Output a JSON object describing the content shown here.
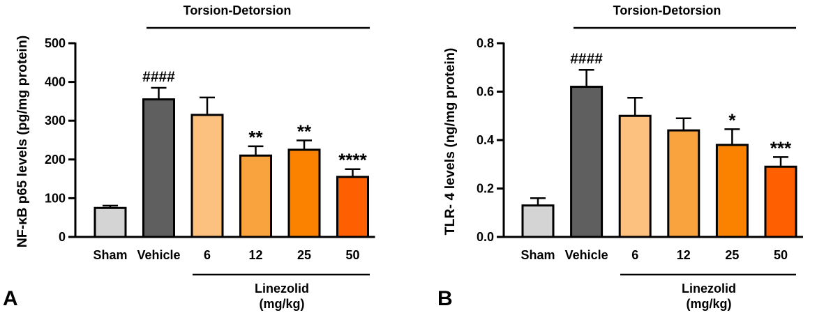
{
  "chart_data": [
    {
      "type": "bar",
      "panel_label": "A",
      "title": "",
      "bracket_top_label": "Torsion-Detorsion",
      "bracket_bottom_label_line1": "Linezolid",
      "bracket_bottom_label_line2": "(mg/kg)",
      "xlabel": "",
      "ylabel": "NF-κB p65 levels (pg/mg protein)",
      "ylim": [
        0,
        500
      ],
      "yticks": [
        0,
        100,
        200,
        300,
        400,
        500
      ],
      "ytick_labels": [
        "0",
        "100",
        "200",
        "300",
        "400",
        "500"
      ],
      "categories": [
        "Sham",
        "Vehicle",
        "6",
        "12",
        "25",
        "50"
      ],
      "values": [
        75,
        355,
        315,
        210,
        225,
        155
      ],
      "errors": [
        6,
        30,
        45,
        24,
        24,
        20
      ],
      "annotations": [
        "",
        "####",
        "",
        "**",
        "**",
        "****"
      ],
      "colors": [
        "#d4d4d4",
        "#5f5f5f",
        "#fcc17e",
        "#f9a33e",
        "#fa8200",
        "#fe5f00"
      ]
    },
    {
      "type": "bar",
      "panel_label": "B",
      "title": "",
      "bracket_top_label": "Torsion-Detorsion",
      "bracket_bottom_label_line1": "Linezolid",
      "bracket_bottom_label_line2": "(mg/kg)",
      "xlabel": "",
      "ylabel": "TLR- 4 levels (ng/mg protein)",
      "ylim": [
        0,
        0.8
      ],
      "yticks": [
        0,
        0.2,
        0.4,
        0.6,
        0.8
      ],
      "ytick_labels": [
        "0.0",
        "0.2",
        "0.4",
        "0.6",
        "0.8"
      ],
      "categories": [
        "Sham",
        "Vehicle",
        "6",
        "12",
        "25",
        "50"
      ],
      "values": [
        0.13,
        0.62,
        0.5,
        0.44,
        0.38,
        0.29
      ],
      "errors": [
        0.03,
        0.07,
        0.075,
        0.05,
        0.065,
        0.04
      ],
      "annotations": [
        "",
        "####",
        "",
        "",
        "*",
        "***"
      ],
      "colors": [
        "#d4d4d4",
        "#5f5f5f",
        "#fcc17e",
        "#f9a33e",
        "#fa8200",
        "#fe5f00"
      ]
    }
  ]
}
